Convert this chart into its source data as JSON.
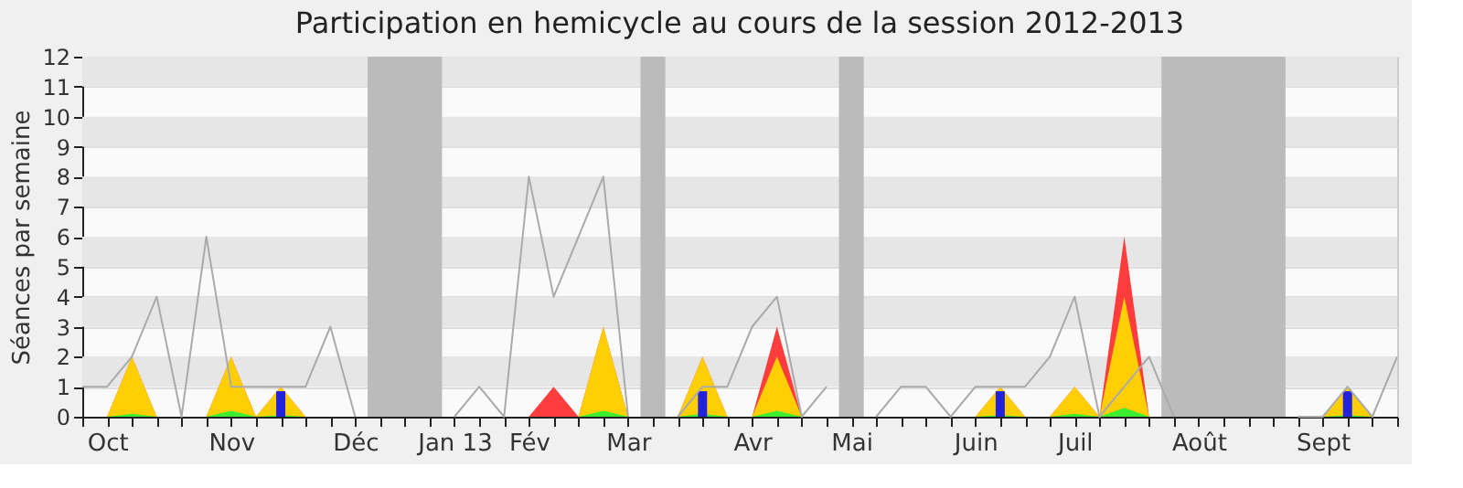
{
  "chart_data": {
    "type": "area",
    "title": "Participation en hemicycle au cours de la session 2012-2013",
    "ylabel": "Séances par semaine",
    "x": [
      "2012-09-28",
      "2012-10-05",
      "2012-10-12",
      "2012-10-19",
      "2012-10-26",
      "2012-11-02",
      "2012-11-09",
      "2012-11-16",
      "2012-11-23",
      "2012-11-30",
      "2012-12-07",
      "2012-12-14",
      "2012-12-21",
      "2012-12-28",
      "2013-01-04",
      "2013-01-11",
      "2013-01-18",
      "2013-01-25",
      "2013-02-01",
      "2013-02-08",
      "2013-02-15",
      "2013-02-22",
      "2013-03-01",
      "2013-03-08",
      "2013-03-15",
      "2013-03-22",
      "2013-03-29",
      "2013-04-05",
      "2013-04-12",
      "2013-04-19",
      "2013-04-26",
      "2013-05-03",
      "2013-05-10",
      "2013-05-17",
      "2013-05-24",
      "2013-05-31",
      "2013-06-07",
      "2013-06-14",
      "2013-06-21",
      "2013-06-28",
      "2013-07-05",
      "2013-07-12",
      "2013-07-19",
      "2013-07-26",
      "2013-08-02",
      "2013-08-09",
      "2013-08-16",
      "2013-08-23",
      "2013-08-30",
      "2013-09-06",
      "2013-09-13",
      "2013-09-20",
      "2013-09-27",
      "2013-10-04"
    ],
    "xlim": [
      "2012-09-28",
      "2013-10-04"
    ],
    "xticks": [
      {
        "value": "2012-09-28",
        "label": null
      },
      {
        "value": "2012-10-05",
        "label": "Oct"
      },
      {
        "value": "2012-10-12",
        "label": null
      },
      {
        "value": "2012-10-19",
        "label": null
      },
      {
        "value": "2012-10-26",
        "label": null
      },
      {
        "value": "2012-11-02",
        "label": null
      },
      {
        "value": "2012-11-09",
        "label": "Nov"
      },
      {
        "value": "2012-11-16",
        "label": null
      },
      {
        "value": "2012-11-23",
        "label": null
      },
      {
        "value": "2012-11-30",
        "label": null
      },
      {
        "value": "2012-12-07",
        "label": null
      },
      {
        "value": "2012-12-14",
        "label": "Déc"
      },
      {
        "value": "2012-12-21",
        "label": null
      },
      {
        "value": "2012-12-28",
        "label": null
      },
      {
        "value": "2013-01-04",
        "label": null
      },
      {
        "value": "2013-01-11",
        "label": "Jan 13"
      },
      {
        "value": "2013-01-18",
        "label": null
      },
      {
        "value": "2013-01-25",
        "label": null
      },
      {
        "value": "2013-02-01",
        "label": "Fév"
      },
      {
        "value": "2013-02-08",
        "label": null
      },
      {
        "value": "2013-02-15",
        "label": null
      },
      {
        "value": "2013-02-22",
        "label": null
      },
      {
        "value": "2013-03-01",
        "label": "Mar"
      },
      {
        "value": "2013-03-08",
        "label": null
      },
      {
        "value": "2013-03-15",
        "label": null
      },
      {
        "value": "2013-03-22",
        "label": null
      },
      {
        "value": "2013-03-29",
        "label": null
      },
      {
        "value": "2013-04-05",
        "label": "Avr"
      },
      {
        "value": "2013-04-12",
        "label": null
      },
      {
        "value": "2013-04-19",
        "label": null
      },
      {
        "value": "2013-04-26",
        "label": null
      },
      {
        "value": "2013-05-03",
        "label": "Mai"
      },
      {
        "value": "2013-05-10",
        "label": null
      },
      {
        "value": "2013-05-17",
        "label": null
      },
      {
        "value": "2013-05-24",
        "label": null
      },
      {
        "value": "2013-05-31",
        "label": null
      },
      {
        "value": "2013-06-07",
        "label": "Juin"
      },
      {
        "value": "2013-06-14",
        "label": null
      },
      {
        "value": "2013-06-21",
        "label": null
      },
      {
        "value": "2013-06-28",
        "label": null
      },
      {
        "value": "2013-07-05",
        "label": "Juil"
      },
      {
        "value": "2013-07-12",
        "label": null
      },
      {
        "value": "2013-07-19",
        "label": null
      },
      {
        "value": "2013-07-26",
        "label": null
      },
      {
        "value": "2013-08-02",
        "label": null
      },
      {
        "value": "2013-08-09",
        "label": "Août"
      },
      {
        "value": "2013-08-16",
        "label": null
      },
      {
        "value": "2013-08-23",
        "label": null
      },
      {
        "value": "2013-08-30",
        "label": null
      },
      {
        "value": "2013-09-06",
        "label": null
      },
      {
        "value": "2013-09-13",
        "label": "Sept"
      },
      {
        "value": "2013-09-20",
        "label": null
      },
      {
        "value": "2013-09-27",
        "label": null
      },
      {
        "value": "2013-10-04",
        "label": null
      }
    ],
    "ylim": [
      0,
      12
    ],
    "yticks": [
      0,
      1,
      2,
      3,
      4,
      5,
      6,
      7,
      8,
      9,
      10,
      11,
      12
    ],
    "grid": "y",
    "bands": [
      {
        "axis": "x",
        "from": "2012-12-17T12:00",
        "to": "2013-01-07T12:00",
        "color": "#bbbbbb"
      },
      {
        "axis": "x",
        "from": "2013-03-04T12:00",
        "to": "2013-03-11T12:00",
        "color": "#bbbbbb"
      },
      {
        "axis": "x",
        "from": "2013-04-29T12:00",
        "to": "2013-05-06T12:00",
        "color": "#bbbbbb"
      },
      {
        "axis": "x",
        "from": "2013-07-29T12:00",
        "to": "2013-09-02T12:00",
        "color": "#bbbbbb"
      }
    ],
    "series": [
      {
        "type": "line",
        "color": "#aaaaaa",
        "values": [
          1,
          1,
          2,
          4,
          0,
          6,
          1,
          1,
          1,
          1,
          3,
          0,
          null,
          null,
          null,
          0,
          1,
          0,
          8,
          4,
          6,
          8,
          0,
          null,
          0,
          1,
          1,
          3,
          4,
          0,
          1,
          null,
          0,
          1,
          1,
          0,
          1,
          1,
          1,
          2,
          4,
          0,
          1,
          2,
          0,
          null,
          null,
          null,
          null,
          0,
          0,
          1,
          0,
          2
        ]
      },
      {
        "color": "#ff3333",
        "values": [
          0,
          0,
          2,
          0,
          0,
          0,
          2,
          0,
          1,
          0,
          0,
          0,
          0,
          0,
          0,
          0,
          0,
          0,
          0,
          1,
          0,
          3,
          0,
          0,
          0,
          2,
          0,
          0,
          3,
          0,
          0,
          0,
          0,
          0,
          0,
          0,
          0,
          1,
          0,
          0,
          1,
          0,
          6,
          0,
          0,
          0,
          0,
          0,
          0,
          0,
          0,
          1,
          0,
          0
        ]
      },
      {
        "color": "#ffd700",
        "values": [
          0,
          0,
          2,
          0,
          0,
          0,
          2,
          0,
          1,
          0,
          0,
          0,
          0,
          0,
          0,
          0,
          0,
          0,
          0,
          0,
          0,
          3,
          0,
          0,
          0,
          2,
          0,
          0,
          2,
          0,
          0,
          0,
          0,
          0,
          0,
          0,
          0,
          1,
          0,
          0,
          1,
          0,
          4,
          0,
          0,
          0,
          0,
          0,
          0,
          0,
          0,
          1,
          0,
          0
        ]
      },
      {
        "color": "#33ee33",
        "values": [
          0,
          0,
          0.1,
          0,
          0,
          0,
          0.2,
          0,
          0.05,
          0,
          0,
          0,
          0,
          0,
          0,
          0,
          0,
          0,
          0,
          0,
          0,
          0.2,
          0,
          0,
          0,
          0.1,
          0,
          0,
          0.2,
          0,
          0,
          0,
          0,
          0,
          0,
          0,
          0,
          0.05,
          0,
          0,
          0.1,
          0,
          0.3,
          0,
          0,
          0,
          0,
          0,
          0,
          0,
          0,
          0.05,
          0,
          0
        ]
      },
      {
        "type": "bar",
        "color": "#2222dd",
        "values": [
          null,
          null,
          null,
          null,
          null,
          null,
          null,
          null,
          0.85,
          null,
          null,
          null,
          null,
          null,
          null,
          null,
          null,
          null,
          null,
          null,
          null,
          null,
          null,
          null,
          null,
          0.85,
          null,
          null,
          null,
          null,
          null,
          null,
          null,
          null,
          null,
          null,
          null,
          0.85,
          null,
          null,
          null,
          null,
          null,
          null,
          null,
          null,
          null,
          null,
          null,
          null,
          null,
          0.85,
          null,
          null
        ]
      }
    ]
  }
}
